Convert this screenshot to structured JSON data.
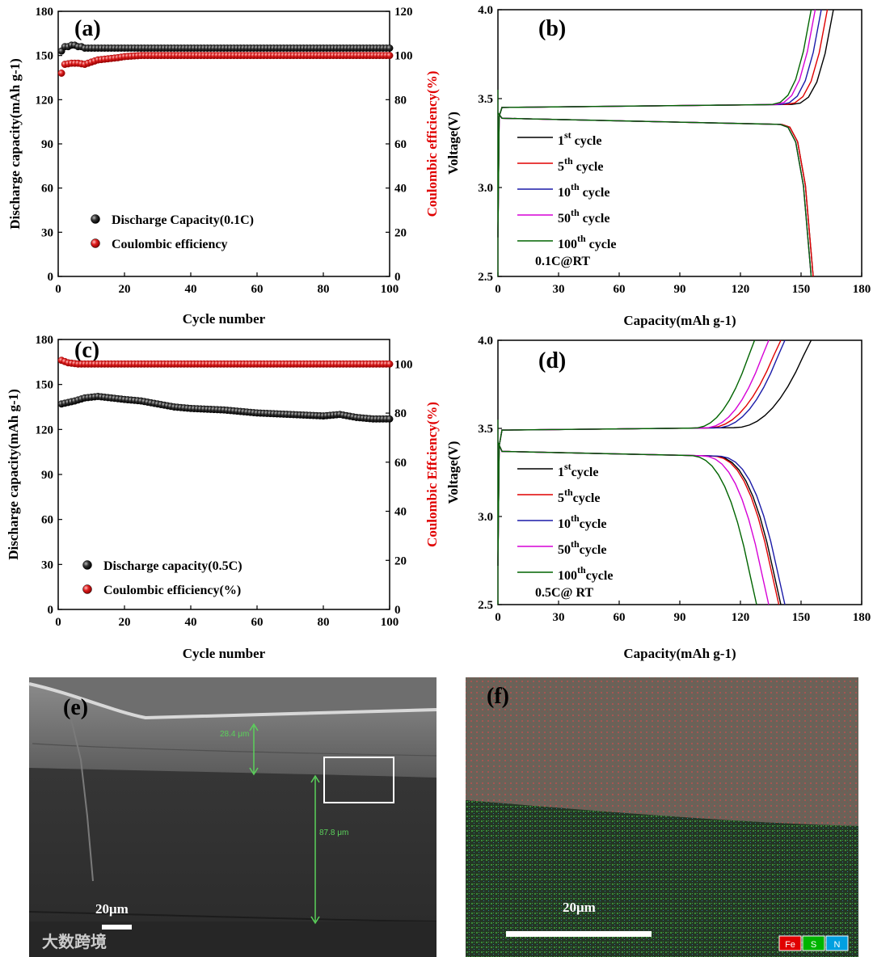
{
  "chart_data": [
    {
      "id": "a",
      "type": "scatter",
      "panel_label": "(a)",
      "xlabel": "Cycle number",
      "ylabel": "Discharge capacity(mAh g-1)",
      "ylabel_right": "Coulombic efficiency(%)",
      "xlim": [
        0,
        100
      ],
      "ylim": [
        0,
        180
      ],
      "ylim_right": [
        0,
        120
      ],
      "xticks": [
        0,
        20,
        40,
        60,
        80,
        100
      ],
      "yticks": [
        0,
        30,
        60,
        90,
        120,
        150,
        180
      ],
      "yticks_right": [
        0,
        20,
        40,
        60,
        80,
        100,
        120
      ],
      "legend_position": "center-left",
      "series": [
        {
          "name": "Discharge Capacity(0.1C)",
          "axis": "left",
          "color": "#000000",
          "points": [
            [
              1,
              153
            ],
            [
              2,
              156
            ],
            [
              3,
              156
            ],
            [
              4,
              157
            ],
            [
              5,
              157
            ],
            [
              6,
              156
            ],
            [
              7,
              156
            ],
            [
              8,
              155
            ],
            [
              10,
              155
            ],
            [
              15,
              155
            ],
            [
              20,
              155
            ],
            [
              40,
              155
            ],
            [
              60,
              155
            ],
            [
              80,
              155
            ],
            [
              100,
              155
            ]
          ]
        },
        {
          "name": "Coulombic efficiency",
          "axis": "right",
          "color": "#e00000",
          "points": [
            [
              1,
              92
            ],
            [
              2,
              96
            ],
            [
              4,
              96.5
            ],
            [
              6,
              96.5
            ],
            [
              8,
              96
            ],
            [
              10,
              97
            ],
            [
              12,
              98
            ],
            [
              15,
              98.5
            ],
            [
              18,
              99
            ],
            [
              20,
              99.5
            ],
            [
              25,
              100
            ],
            [
              30,
              100
            ],
            [
              50,
              100
            ],
            [
              70,
              100
            ],
            [
              100,
              100
            ]
          ]
        }
      ]
    },
    {
      "id": "b",
      "type": "line",
      "panel_label": "(b)",
      "xlabel": "Capacity(mAh g-1)",
      "ylabel": "Voltage(V)",
      "xlim": [
        0,
        180
      ],
      "ylim": [
        2.5,
        4.0
      ],
      "xticks": [
        0,
        30,
        60,
        90,
        120,
        150,
        180
      ],
      "yticks": [
        2.5,
        3.0,
        3.5,
        4.0
      ],
      "annotation": "0.1C@RT",
      "legend_position": "center-left",
      "series": [
        {
          "name": "1st cycle",
          "num": "1",
          "sup": "st",
          "suffix": " cycle",
          "color": "#000000",
          "charge_end": 166,
          "discharge_end": 156
        },
        {
          "name": "5th cycle",
          "num": "5",
          "sup": "th",
          "suffix": " cycle",
          "color": "#e00000",
          "charge_end": 163,
          "discharge_end": 156
        },
        {
          "name": "10th cycle",
          "num": "10",
          "sup": "th",
          "suffix": " cycle",
          "color": "#1a1aa8",
          "charge_end": 160,
          "discharge_end": 155
        },
        {
          "name": "50th cycle",
          "num": "50",
          "sup": "th",
          "suffix": " cycle",
          "color": "#d600d6",
          "charge_end": 157,
          "discharge_end": 155
        },
        {
          "name": "100th cycle",
          "num": "100",
          "sup": "th",
          "suffix": " cycle",
          "color": "#006400",
          "charge_end": 155,
          "discharge_end": 155
        }
      ]
    },
    {
      "id": "c",
      "type": "scatter",
      "panel_label": "(c)",
      "xlabel": "Cycle number",
      "ylabel": "Discharge capacity(mAh g-1)",
      "ylabel_right": "Coulombic Effciency(%)",
      "xlim": [
        0,
        100
      ],
      "ylim": [
        0,
        180
      ],
      "ylim_right": [
        0,
        110
      ],
      "xticks": [
        0,
        20,
        40,
        60,
        80,
        100
      ],
      "yticks": [
        0,
        30,
        60,
        90,
        120,
        150,
        180
      ],
      "yticks_right": [
        0,
        20,
        40,
        60,
        80,
        100
      ],
      "legend_position": "bottom-left",
      "series": [
        {
          "name": "Discharge capacity(0.5C)",
          "axis": "left",
          "color": "#000000",
          "points": [
            [
              1,
              137
            ],
            [
              5,
              139
            ],
            [
              8,
              141
            ],
            [
              12,
              142
            ],
            [
              16,
              141
            ],
            [
              20,
              140
            ],
            [
              25,
              139
            ],
            [
              30,
              137
            ],
            [
              35,
              135
            ],
            [
              40,
              134
            ],
            [
              50,
              133
            ],
            [
              60,
              131
            ],
            [
              70,
              130
            ],
            [
              80,
              129
            ],
            [
              85,
              130
            ],
            [
              90,
              128
            ],
            [
              95,
              127
            ],
            [
              100,
              127
            ]
          ]
        },
        {
          "name": "Coulombic efficiency(%)",
          "axis": "right",
          "color": "#e00000",
          "points": [
            [
              1,
              101.5
            ],
            [
              3,
              100.5
            ],
            [
              6,
              100
            ],
            [
              10,
              100
            ],
            [
              30,
              100
            ],
            [
              50,
              100
            ],
            [
              70,
              100
            ],
            [
              100,
              100
            ]
          ]
        }
      ]
    },
    {
      "id": "d",
      "type": "line",
      "panel_label": "(d)",
      "xlabel": "Capacity(mAh g-1)",
      "ylabel": "Voltage(V)",
      "xlim": [
        0,
        180
      ],
      "ylim": [
        2.5,
        4.0
      ],
      "xticks": [
        0,
        30,
        60,
        90,
        120,
        150,
        180
      ],
      "yticks": [
        2.5,
        3.0,
        3.5,
        4.0
      ],
      "annotation": "0.5C@ RT",
      "legend_position": "bottom-left",
      "series": [
        {
          "name": "1st cycle",
          "num": "1",
          "sup": "st",
          "suffix": "cycle",
          "color": "#000000",
          "charge_end": 155,
          "discharge_end": 140
        },
        {
          "name": "5th cycle",
          "num": "5",
          "sup": "th",
          "suffix": "cycle",
          "color": "#e00000",
          "charge_end": 140,
          "discharge_end": 139
        },
        {
          "name": "10th cycle",
          "num": "10",
          "sup": "th",
          "suffix": "cycle",
          "color": "#1a1aa8",
          "charge_end": 142,
          "discharge_end": 142
        },
        {
          "name": "50th cycle",
          "num": "50",
          "sup": "th",
          "suffix": "cycle",
          "color": "#d600d6",
          "charge_end": 134,
          "discharge_end": 134
        },
        {
          "name": "100th cycle",
          "num": "100",
          "sup": "th",
          "suffix": "cycle",
          "color": "#006400",
          "charge_end": 127,
          "discharge_end": 128
        }
      ]
    }
  ],
  "images": {
    "e": {
      "panel_label": "(e)",
      "scale_bar": "20μm",
      "measure_top": "28.4 μm",
      "measure_bottom": "87.8 μm",
      "watermark": "大数跨境"
    },
    "f": {
      "panel_label": "(f)",
      "scale_bar": "20μm",
      "eds_legend": [
        {
          "label": "Fe",
          "color": "#e00000"
        },
        {
          "label": "S",
          "color": "#00b400"
        },
        {
          "label": "N",
          "color": "#00a0e0"
        }
      ]
    }
  }
}
